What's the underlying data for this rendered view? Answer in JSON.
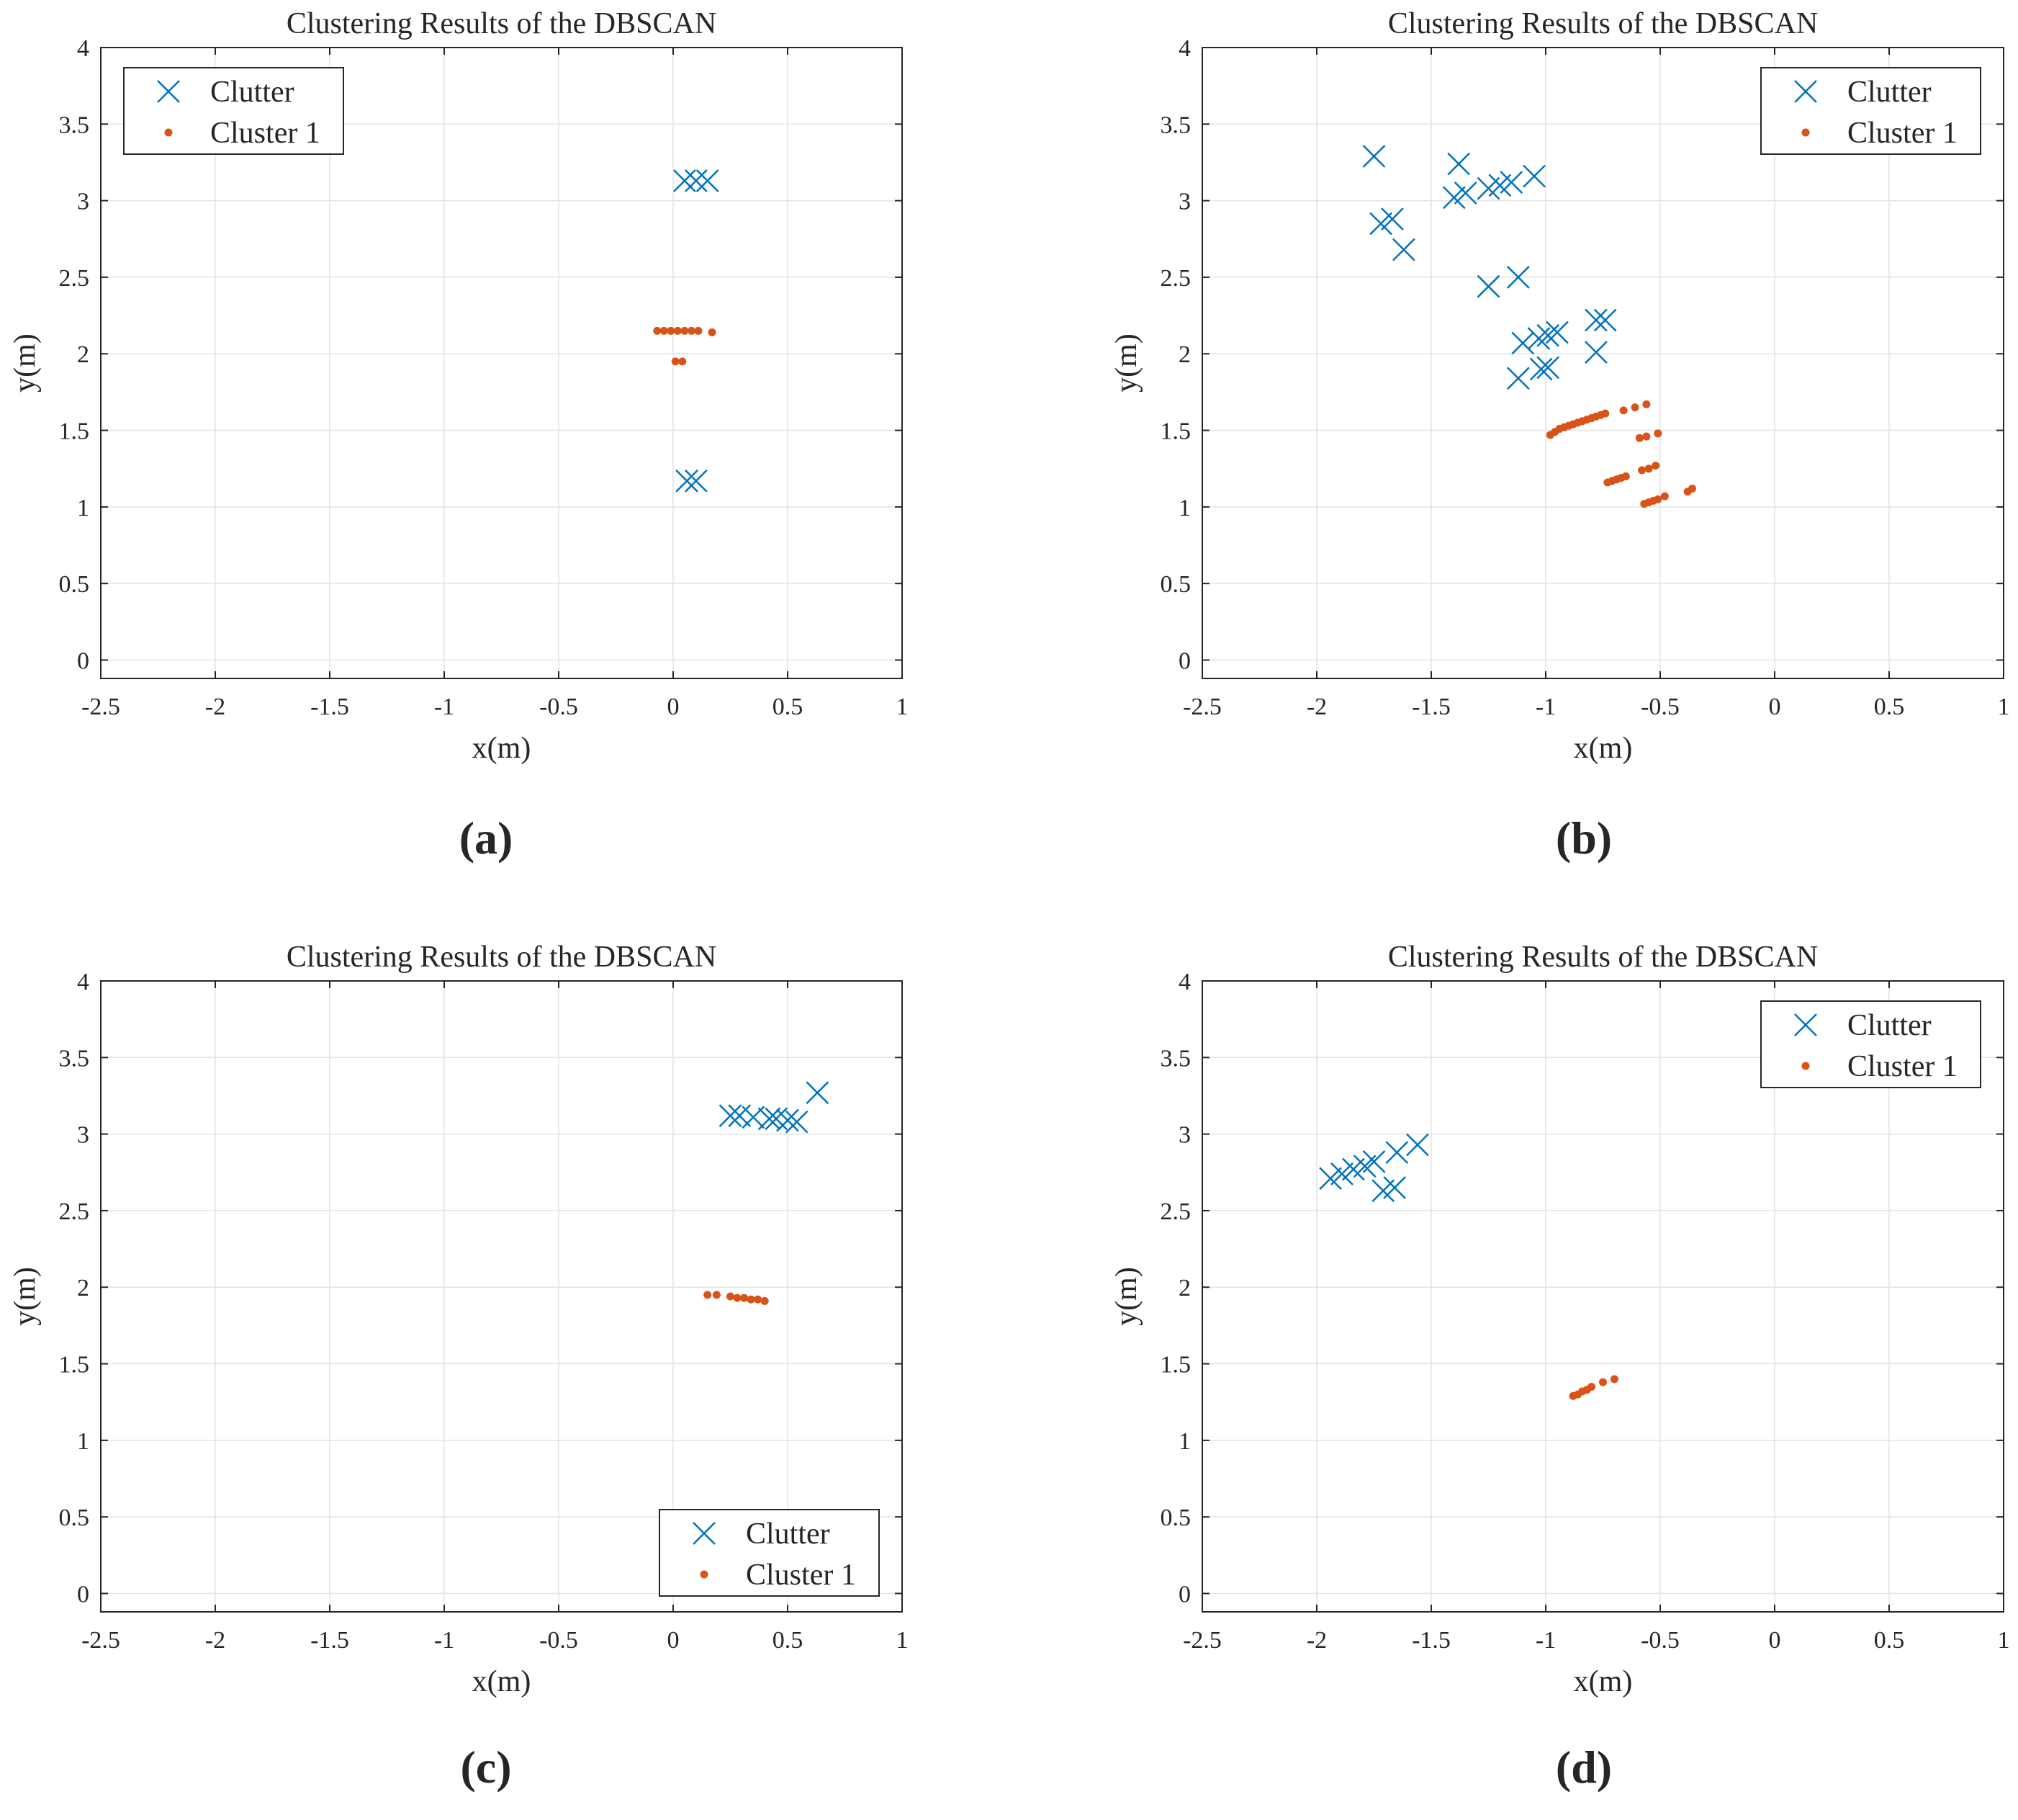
{
  "colors": {
    "clutter": "#0072BD",
    "cluster": "#D95319",
    "axis": "#262626",
    "grid": "#e3e3e3"
  },
  "chart_data": [
    {
      "panel": "(a)",
      "type": "scatter",
      "title": "Clustering Results of the DBSCAN",
      "xlabel": "x(m)",
      "ylabel": "y(m)",
      "xlim": [
        -2.5,
        1
      ],
      "ylim": [
        -0.12,
        4
      ],
      "xticks": [
        -2.5,
        -2,
        -1.5,
        -1,
        -0.5,
        0,
        0.5,
        1
      ],
      "xticklabels": [
        "-2.5",
        "-2",
        "-1.5",
        "-1",
        "-0.5",
        "0",
        "0.5",
        "1"
      ],
      "yticks": [
        0,
        0.5,
        1,
        1.5,
        2,
        2.5,
        3,
        3.5,
        4
      ],
      "yticklabels": [
        "0",
        "0.5",
        "1",
        "1.5",
        "2",
        "2.5",
        "3",
        "3.5",
        "4"
      ],
      "grid": true,
      "legend_position": "top-left",
      "series": [
        {
          "name": "Clutter",
          "marker": "x",
          "color": "#0072BD",
          "x": [
            0.05,
            0.1,
            0.15,
            0.06,
            0.1
          ],
          "y": [
            3.13,
            3.13,
            3.13,
            1.17,
            1.17
          ]
        },
        {
          "name": "Cluster 1",
          "marker": "dot",
          "color": "#D95319",
          "x": [
            -0.07,
            -0.04,
            -0.01,
            0.02,
            0.05,
            0.08,
            0.11,
            0.17,
            0.01,
            0.04
          ],
          "y": [
            2.15,
            2.15,
            2.15,
            2.15,
            2.15,
            2.15,
            2.15,
            2.14,
            1.95,
            1.95
          ]
        }
      ]
    },
    {
      "panel": "(b)",
      "type": "scatter",
      "title": "Clustering Results of the DBSCAN",
      "xlabel": "x(m)",
      "ylabel": "y(m)",
      "xlim": [
        -2.5,
        1
      ],
      "ylim": [
        -0.12,
        4
      ],
      "xticks": [
        -2.5,
        -2,
        -1.5,
        -1,
        -0.5,
        0,
        0.5,
        1
      ],
      "xticklabels": [
        "-2.5",
        "-2",
        "-1.5",
        "-1",
        "-0.5",
        "0",
        "0.5",
        "1"
      ],
      "yticks": [
        0,
        0.5,
        1,
        1.5,
        2,
        2.5,
        3,
        3.5,
        4
      ],
      "yticklabels": [
        "0",
        "0.5",
        "1",
        "1.5",
        "2",
        "2.5",
        "3",
        "3.5",
        "4"
      ],
      "grid": true,
      "legend_position": "top-right",
      "series": [
        {
          "name": "Clutter",
          "marker": "x",
          "color": "#0072BD",
          "x": [
            -1.75,
            -1.38,
            -1.4,
            -1.35,
            -1.25,
            -1.2,
            -1.15,
            -1.05,
            -1.72,
            -1.67,
            -1.62,
            -1.25,
            -1.12,
            -1.1,
            -1.03,
            -0.99,
            -0.95,
            -0.78,
            -0.74,
            -0.78,
            -1.12,
            -1.02,
            -0.99
          ],
          "y": [
            3.29,
            3.24,
            3.02,
            3.05,
            3.08,
            3.1,
            3.12,
            3.16,
            2.85,
            2.88,
            2.68,
            2.44,
            2.5,
            2.07,
            2.1,
            2.12,
            2.14,
            2.22,
            2.22,
            2.01,
            1.84,
            1.9,
            1.91
          ]
        },
        {
          "name": "Cluster 1",
          "marker": "dot",
          "color": "#D95319",
          "x": [
            -0.98,
            -0.96,
            -0.94,
            -0.92,
            -0.9,
            -0.88,
            -0.86,
            -0.84,
            -0.82,
            -0.8,
            -0.78,
            -0.76,
            -0.74,
            -0.66,
            -0.61,
            -0.56,
            -0.59,
            -0.56,
            -0.51,
            -0.73,
            -0.71,
            -0.69,
            -0.67,
            -0.65,
            -0.58,
            -0.55,
            -0.52,
            -0.57,
            -0.55,
            -0.53,
            -0.51,
            -0.48,
            -0.38,
            -0.36
          ],
          "y": [
            1.47,
            1.49,
            1.51,
            1.52,
            1.53,
            1.54,
            1.55,
            1.56,
            1.57,
            1.58,
            1.59,
            1.6,
            1.61,
            1.63,
            1.65,
            1.67,
            1.45,
            1.46,
            1.48,
            1.16,
            1.17,
            1.18,
            1.19,
            1.2,
            1.24,
            1.25,
            1.27,
            1.02,
            1.03,
            1.04,
            1.05,
            1.07,
            1.1,
            1.12
          ]
        }
      ]
    },
    {
      "panel": "(c)",
      "type": "scatter",
      "title": "Clustering Results of the DBSCAN",
      "xlabel": "x(m)",
      "ylabel": "y(m)",
      "xlim": [
        -2.5,
        1
      ],
      "ylim": [
        -0.12,
        4
      ],
      "xticks": [
        -2.5,
        -2,
        -1.5,
        -1,
        -0.5,
        0,
        0.5,
        1
      ],
      "xticklabels": [
        "-2.5",
        "-2",
        "-1.5",
        "-1",
        "-0.5",
        "0",
        "0.5",
        "1"
      ],
      "yticks": [
        0,
        0.5,
        1,
        1.5,
        2,
        2.5,
        3,
        3.5,
        4
      ],
      "yticklabels": [
        "0",
        "0.5",
        "1",
        "1.5",
        "2",
        "2.5",
        "3",
        "3.5",
        "4"
      ],
      "grid": true,
      "legend_position": "bottom-right",
      "series": [
        {
          "name": "Clutter",
          "marker": "x",
          "color": "#0072BD",
          "x": [
            0.25,
            0.29,
            0.35,
            0.42,
            0.45,
            0.5,
            0.54,
            0.63
          ],
          "y": [
            3.12,
            3.12,
            3.11,
            3.1,
            3.1,
            3.09,
            3.08,
            3.27
          ]
        },
        {
          "name": "Cluster 1",
          "marker": "dot",
          "color": "#D95319",
          "x": [
            0.15,
            0.19,
            0.25,
            0.28,
            0.31,
            0.34,
            0.37,
            0.4
          ],
          "y": [
            1.95,
            1.95,
            1.94,
            1.93,
            1.93,
            1.92,
            1.92,
            1.91
          ]
        }
      ]
    },
    {
      "panel": "(d)",
      "type": "scatter",
      "title": "Clustering Results of the DBSCAN",
      "xlabel": "x(m)",
      "ylabel": "y(m)",
      "xlim": [
        -2.5,
        1
      ],
      "ylim": [
        -0.12,
        4
      ],
      "xticks": [
        -2.5,
        -2,
        -1.5,
        -1,
        -0.5,
        0,
        0.5,
        1
      ],
      "xticklabels": [
        "-2.5",
        "-2",
        "-1.5",
        "-1",
        "-0.5",
        "0",
        "0.5",
        "1"
      ],
      "yticks": [
        0,
        0.5,
        1,
        1.5,
        2,
        2.5,
        3,
        3.5,
        4
      ],
      "yticklabels": [
        "0",
        "0.5",
        "1",
        "1.5",
        "2",
        "2.5",
        "3",
        "3.5",
        "4"
      ],
      "grid": true,
      "legend_position": "top-right",
      "series": [
        {
          "name": "Clutter",
          "marker": "x",
          "color": "#0072BD",
          "x": [
            -1.94,
            -1.89,
            -1.84,
            -1.79,
            -1.75,
            -1.71,
            -1.66,
            -1.65,
            -1.56
          ],
          "y": [
            2.71,
            2.74,
            2.77,
            2.79,
            2.82,
            2.63,
            2.65,
            2.88,
            2.93
          ]
        },
        {
          "name": "Cluster 1",
          "marker": "dot",
          "color": "#D95319",
          "x": [
            -0.88,
            -0.86,
            -0.84,
            -0.82,
            -0.8,
            -0.75,
            -0.7
          ],
          "y": [
            1.29,
            1.3,
            1.32,
            1.33,
            1.35,
            1.38,
            1.4
          ]
        }
      ]
    }
  ]
}
